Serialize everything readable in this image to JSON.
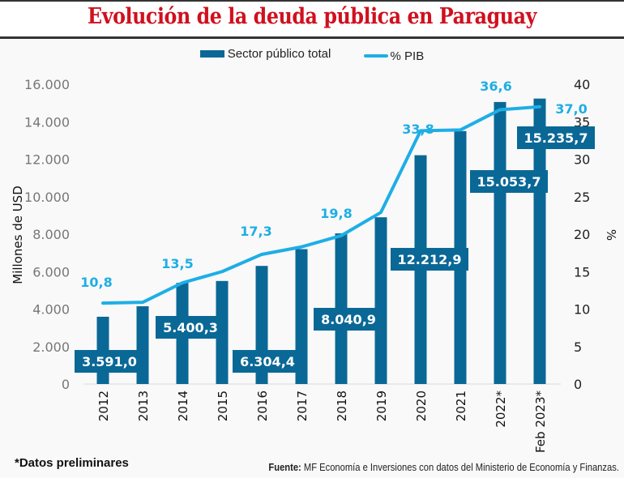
{
  "header": {
    "title": "Evolución de la deuda pública en Paraguay"
  },
  "footer": {
    "note": "*Datos preliminares",
    "source_label": "Fuente:",
    "source_text": " MF Economía e Inversiones con datos del Ministerio de Economía y Finanzas."
  },
  "colors": {
    "bar": "#0a6896",
    "line": "#1eaee5",
    "title": "#d0101e"
  },
  "chart_data": {
    "type": "bar+line",
    "title": "Evolución de la deuda pública en Paraguay",
    "categories": [
      "2012",
      "2013",
      "2014",
      "2015",
      "2016",
      "2017",
      "2018",
      "2019",
      "2020",
      "2021",
      "2022*",
      "Feb 2023*"
    ],
    "series": [
      {
        "name": "Sector público total",
        "type": "bar",
        "axis": "left",
        "values": [
          3591.0,
          4150,
          5400.3,
          5500,
          6304.4,
          7200,
          8040.9,
          8900,
          12212.9,
          13500,
          15053.7,
          15235.7
        ],
        "labels": [
          "3.591,0",
          null,
          "5.400,3",
          null,
          "6.304,4",
          null,
          "8.040,9",
          null,
          "12.212,9",
          null,
          "15.053,7",
          "15.235,7"
        ]
      },
      {
        "name": "% PIB",
        "type": "line",
        "axis": "right",
        "values": [
          10.8,
          10.9,
          13.5,
          15.0,
          17.3,
          18.3,
          19.8,
          22.9,
          33.8,
          33.9,
          36.6,
          37.0
        ],
        "labels": [
          "10,8",
          null,
          "13,5",
          null,
          "17,3",
          null,
          "19,8",
          null,
          "33,8",
          null,
          "36,6",
          "37,0"
        ]
      }
    ],
    "ylabel": "Millones de USD",
    "y2label": "%",
    "ylim": [
      0,
      16000
    ],
    "y2lim": [
      0,
      40
    ],
    "yticks": [
      "0",
      "2.000",
      "4.000",
      "6.000",
      "8.000",
      "10.000",
      "12.000",
      "14.000",
      "16.000"
    ],
    "y2ticks": [
      "0",
      "5",
      "10",
      "15",
      "20",
      "25",
      "30",
      "35",
      "40"
    ],
    "legend": [
      "Sector público total",
      "% PIB"
    ],
    "legend_position": "top-center",
    "grid": false
  }
}
